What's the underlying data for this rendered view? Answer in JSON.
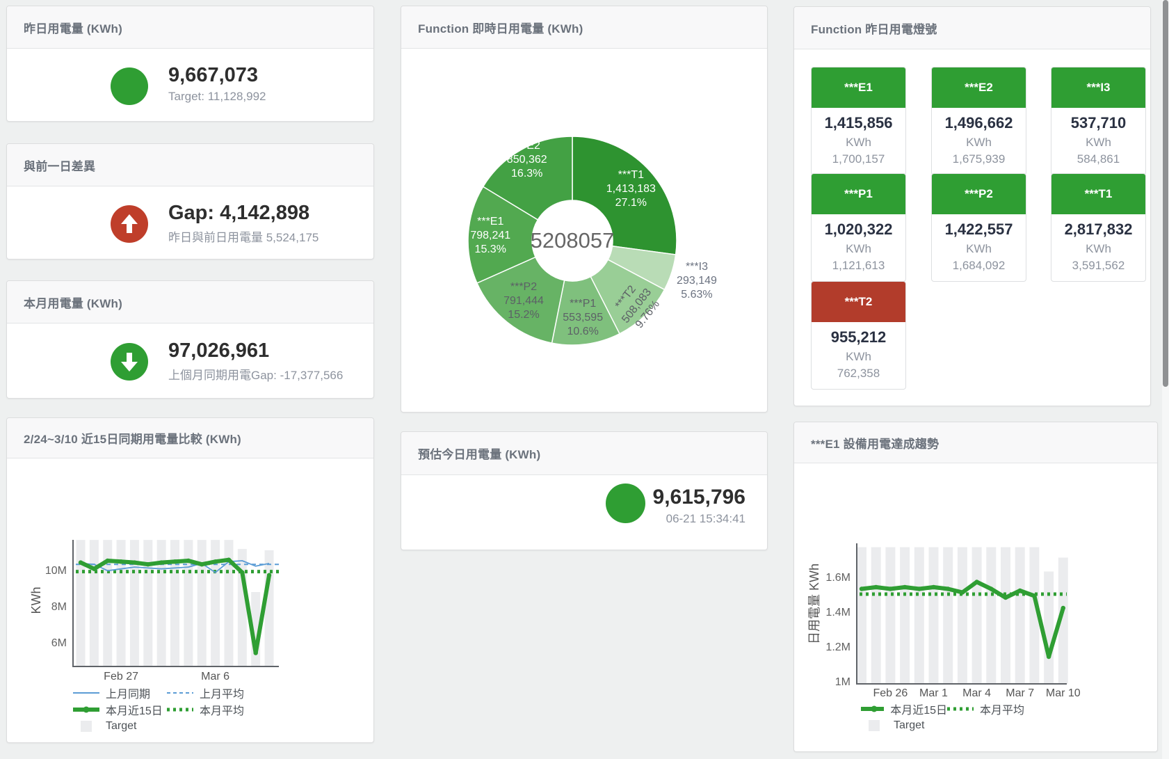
{
  "page": {
    "background": "#eef0f0",
    "accent_green": "#2f9e33",
    "accent_red": "#b23c2b",
    "accent_blue": "#5b9cd5",
    "target_gray": "#ebecee"
  },
  "panels": {
    "yesterday": {
      "title": "昨日用電量 (KWh)",
      "value": "9,667,073",
      "subtitle": "Target: 11,128,992",
      "icon": "green-circle"
    },
    "gap": {
      "title": "與前一日差異",
      "value": "Gap: 4,142,898",
      "subtitle": "昨日與前日用電量 5,524,175",
      "icon": "red-up-arrow-circle"
    },
    "month": {
      "title": "本月用電量 (KWh)",
      "value": "97,026,961",
      "subtitle": "上個月同期用電Gap: -17,377,566",
      "icon": "green-down-arrow-circle"
    },
    "estimate": {
      "title": "預估今日用電量 (KWh)",
      "value": "9,615,796",
      "subtitle": "06-21 15:34:41",
      "icon": "green-circle"
    },
    "realtime": {
      "title": "Function 即時日用電量 (KWh)"
    },
    "lights": {
      "title": "Function 昨日用電燈號",
      "unit": "KWh",
      "tiles": [
        {
          "id": "e1",
          "label": "***E1",
          "value": "1,415,856",
          "prev": "1,700,157",
          "status": "green"
        },
        {
          "id": "e2",
          "label": "***E2",
          "value": "1,496,662",
          "prev": "1,675,939",
          "status": "green"
        },
        {
          "id": "i3",
          "label": "***I3",
          "value": "537,710",
          "prev": "584,861",
          "status": "green"
        },
        {
          "id": "p1",
          "label": "***P1",
          "value": "1,020,322",
          "prev": "1,121,613",
          "status": "green"
        },
        {
          "id": "p2",
          "label": "***P2",
          "value": "1,422,557",
          "prev": "1,684,092",
          "status": "green"
        },
        {
          "id": "t1",
          "label": "***T1",
          "value": "2,817,832",
          "prev": "3,591,562",
          "status": "green"
        },
        {
          "id": "t2",
          "label": "***T2",
          "value": "955,212",
          "prev": "762,358",
          "status": "red"
        }
      ]
    },
    "compare": {
      "title": "2/24~3/10 近15日同期用電量比較 (KWh)"
    },
    "trend": {
      "title": "***E1 設備用電達成趨勢"
    }
  },
  "chart_data": [
    {
      "type": "pie",
      "panel": "realtime",
      "title": "Function 即時日用電量 (KWh)",
      "center_total": "5208057",
      "slices": [
        {
          "name": "***T1",
          "value": 1413183,
          "label": "1,413,183",
          "pct": "27.1%"
        },
        {
          "name": "***I3",
          "value": 293149,
          "label": "293,149",
          "pct": "5.63%"
        },
        {
          "name": "***T2",
          "value": 508083,
          "label": "508,083",
          "pct": "9.76%"
        },
        {
          "name": "***P1",
          "value": 553595,
          "label": "553,595",
          "pct": "10.6%"
        },
        {
          "name": "***P2",
          "value": 791444,
          "label": "791,444",
          "pct": "15.2%"
        },
        {
          "name": "***E1",
          "value": 798241,
          "label": "798,241",
          "pct": "15.3%"
        },
        {
          "name": "***E2",
          "value": 850362,
          "label": "850,362",
          "pct": "16.3%"
        }
      ],
      "palette": [
        "#2e9330",
        "#b9dcb6",
        "#99ce96",
        "#7fc07d",
        "#67b365",
        "#52a950",
        "#43a144"
      ]
    },
    {
      "type": "line",
      "panel": "compare",
      "title": "2/24~3/10 近15日同期用電量比較 (KWh)",
      "ylabel": "KWh",
      "unit": "millions KWh",
      "x": [
        "2/24",
        "2/25",
        "2/26",
        "2/27",
        "2/28",
        "3/1",
        "3/2",
        "3/3",
        "3/4",
        "3/5",
        "3/6",
        "3/7",
        "3/8",
        "3/9",
        "3/10"
      ],
      "xticks": [
        {
          "index": 3,
          "label": "Feb 27"
        },
        {
          "index": 10,
          "label": "Mar 6"
        }
      ],
      "yticks": [
        {
          "value": 10,
          "label": "10M"
        },
        {
          "value": 8,
          "label": "8M"
        },
        {
          "value": 6,
          "label": "6M"
        }
      ],
      "ylim": [
        4.65,
        11.7
      ],
      "grid": false,
      "legend_position": "bottom",
      "series": [
        {
          "name": "Target",
          "type": "bar",
          "color": "gray",
          "values": [
            11.65,
            11.65,
            11.65,
            11.65,
            11.65,
            11.65,
            11.65,
            11.65,
            11.65,
            11.65,
            11.65,
            11.65,
            11.15,
            8.77,
            11.08
          ]
        },
        {
          "name": "上月平均",
          "type": "dashed",
          "color": "blue",
          "value": 10.3
        },
        {
          "name": "本月平均",
          "type": "dotted",
          "color": "green",
          "value": 9.9
        },
        {
          "name": "上月同期",
          "type": "line",
          "color": "blue",
          "values": [
            10.35,
            10.3,
            9.95,
            10.05,
            10.15,
            10.1,
            10.05,
            10.1,
            10.15,
            10.35,
            9.85,
            10.45,
            10.5,
            10.2,
            10.35
          ]
        },
        {
          "name": "本月近15日",
          "type": "thick",
          "color": "green",
          "values": [
            10.4,
            10.05,
            10.5,
            10.45,
            10.4,
            10.3,
            10.4,
            10.45,
            10.5,
            10.3,
            10.45,
            10.55,
            9.85,
            5.4,
            9.7
          ]
        }
      ],
      "legend_order": [
        "上月同期",
        "上月平均",
        "本月近15日",
        "本月平均",
        "Target"
      ]
    },
    {
      "type": "line",
      "panel": "trend",
      "title": "***E1 設備用電達成趨勢",
      "ylabel": "日用電量 KWh",
      "unit": "millions KWh",
      "x": [
        "2/24",
        "2/25",
        "2/26",
        "2/27",
        "2/28",
        "3/1",
        "3/2",
        "3/3",
        "3/4",
        "3/5",
        "3/6",
        "3/7",
        "3/8",
        "3/9",
        "3/10"
      ],
      "xticks": [
        {
          "index": 2,
          "label": "Feb 26"
        },
        {
          "index": 5,
          "label": "Mar 1"
        },
        {
          "index": 8,
          "label": "Mar 4"
        },
        {
          "index": 11,
          "label": "Mar 7"
        },
        {
          "index": 14,
          "label": "Mar 10"
        }
      ],
      "yticks": [
        {
          "value": 1.6,
          "label": "1.6M"
        },
        {
          "value": 1.4,
          "label": "1.4M"
        },
        {
          "value": 1.2,
          "label": "1.2M"
        },
        {
          "value": 1.0,
          "label": "1M"
        }
      ],
      "ylim": [
        0.98,
        1.79
      ],
      "grid": false,
      "legend_position": "bottom",
      "series": [
        {
          "name": "Target",
          "type": "bar",
          "color": "gray",
          "values": [
            1.77,
            1.77,
            1.77,
            1.77,
            1.77,
            1.77,
            1.77,
            1.77,
            1.77,
            1.77,
            1.77,
            1.77,
            1.77,
            1.63,
            1.71
          ]
        },
        {
          "name": "本月平均",
          "type": "dotted",
          "color": "green",
          "value": 1.5
        },
        {
          "name": "本月近15日",
          "type": "thick",
          "color": "green",
          "values": [
            1.53,
            1.54,
            1.53,
            1.54,
            1.53,
            1.54,
            1.53,
            1.51,
            1.57,
            1.53,
            1.48,
            1.52,
            1.49,
            1.14,
            1.42
          ]
        }
      ],
      "legend_order": [
        "本月近15日",
        "本月平均",
        "Target"
      ]
    }
  ]
}
